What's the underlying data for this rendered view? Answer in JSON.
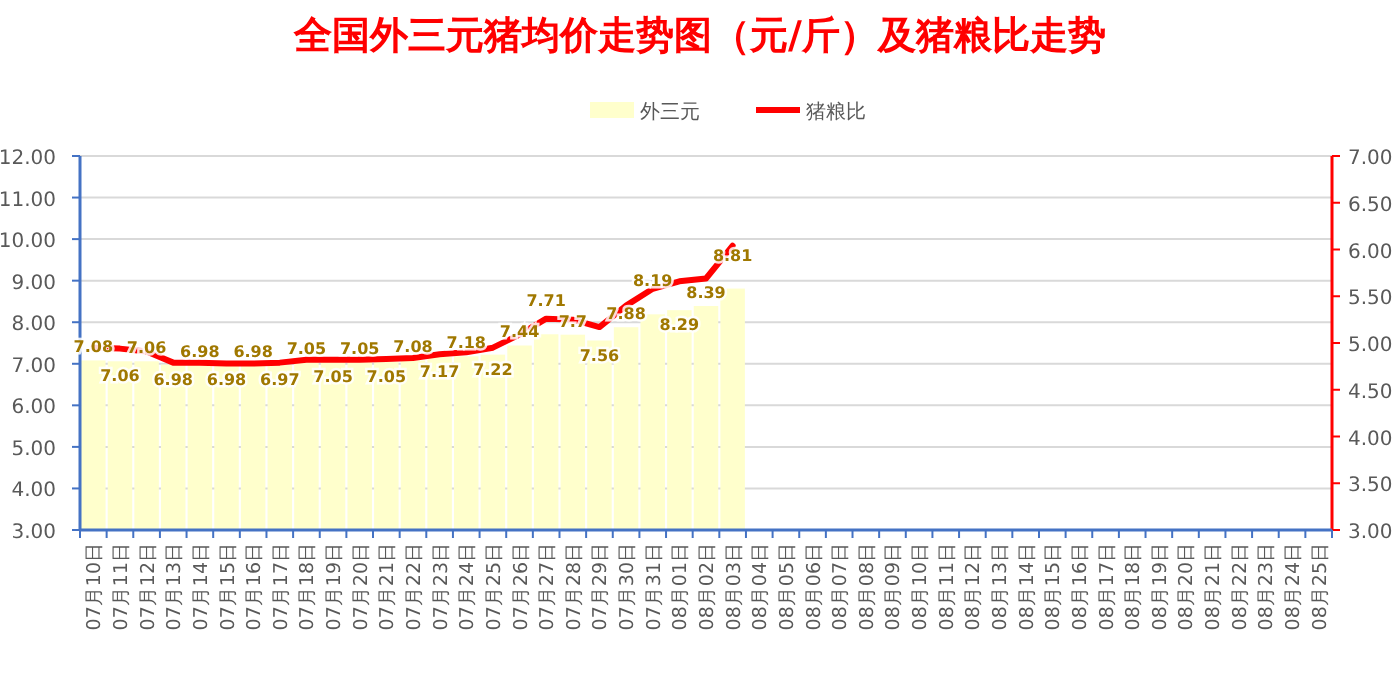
{
  "chart_data": {
    "type": "bar",
    "title": "全国外三元猪均价走势图（元/斤）及猪粮比走势",
    "categories": [
      "07月10日",
      "07月11日",
      "07月12日",
      "07月13日",
      "07月14日",
      "07月15日",
      "07月16日",
      "07月17日",
      "07月18日",
      "07月19日",
      "07月20日",
      "07月21日",
      "07月22日",
      "07月23日",
      "07月24日",
      "07月25日",
      "07月26日",
      "07月27日",
      "07月28日",
      "07月29日",
      "07月30日",
      "07月31日",
      "08月01日",
      "08月02日",
      "08月03日",
      "08月04日",
      "08月05日",
      "08月06日",
      "08月07日",
      "08月08日",
      "08月09日",
      "08月10日",
      "08月11日",
      "08月12日",
      "08月13日",
      "08月14日",
      "08月15日",
      "08月16日",
      "08月17日",
      "08月18日",
      "08月19日",
      "08月20日",
      "08月21日",
      "08月22日",
      "08月23日",
      "08月24日",
      "08月25日"
    ],
    "series": [
      {
        "name": "外三元",
        "color": "#ffffcc",
        "data_labels": true,
        "values": [
          7.08,
          7.06,
          7.06,
          6.98,
          6.98,
          6.98,
          6.98,
          6.97,
          7.05,
          7.05,
          7.05,
          7.05,
          7.08,
          7.17,
          7.18,
          7.22,
          7.44,
          7.71,
          7.7,
          7.56,
          7.88,
          8.19,
          8.29,
          8.39,
          8.81,
          null,
          null,
          null,
          null,
          null,
          null,
          null,
          null,
          null,
          null,
          null,
          null,
          null,
          null,
          null,
          null,
          null,
          null,
          null,
          null,
          null,
          null
        ]
      },
      {
        "name": "猪粮比",
        "type": "line",
        "axis": "y2",
        "color": "#ff0000",
        "values": [
          4.95,
          4.94,
          4.91,
          4.79,
          4.79,
          4.78,
          4.78,
          4.79,
          4.82,
          4.82,
          4.82,
          4.83,
          4.84,
          4.88,
          4.9,
          4.95,
          5.09,
          5.26,
          5.25,
          5.17,
          5.4,
          5.58,
          5.66,
          5.69,
          6.04,
          null,
          null,
          null,
          null,
          null,
          null,
          null,
          null,
          null,
          null,
          null,
          null,
          null,
          null,
          null,
          null,
          null,
          null,
          null,
          null,
          null,
          null
        ]
      }
    ],
    "ylim": [
      3,
      12
    ],
    "yticks": [
      {
        "value": 3,
        "label": "3.00"
      },
      {
        "value": 4,
        "label": "4.00"
      },
      {
        "value": 5,
        "label": "5.00"
      },
      {
        "value": 6,
        "label": "6.00"
      },
      {
        "value": 7,
        "label": "7.00"
      },
      {
        "value": 8,
        "label": "8.00"
      },
      {
        "value": 9,
        "label": "9.00"
      },
      {
        "value": 10,
        "label": "10.00"
      },
      {
        "value": 11,
        "label": "11.00"
      },
      {
        "value": 12,
        "label": "12.00"
      }
    ],
    "y2lim": [
      3,
      7
    ],
    "y2ticks": [
      {
        "value": 3,
        "label": "3.00"
      },
      {
        "value": 3.5,
        "label": "3.50"
      },
      {
        "value": 4,
        "label": "4.00"
      },
      {
        "value": 4.5,
        "label": "4.50"
      },
      {
        "value": 5,
        "label": "5.00"
      },
      {
        "value": 5.5,
        "label": "5.50"
      },
      {
        "value": 6,
        "label": "6.00"
      },
      {
        "value": 6.5,
        "label": "6.50"
      },
      {
        "value": 7,
        "label": "7.00"
      }
    ],
    "grid": "y",
    "legend": "top",
    "marker": "none",
    "line_style": "solid"
  }
}
